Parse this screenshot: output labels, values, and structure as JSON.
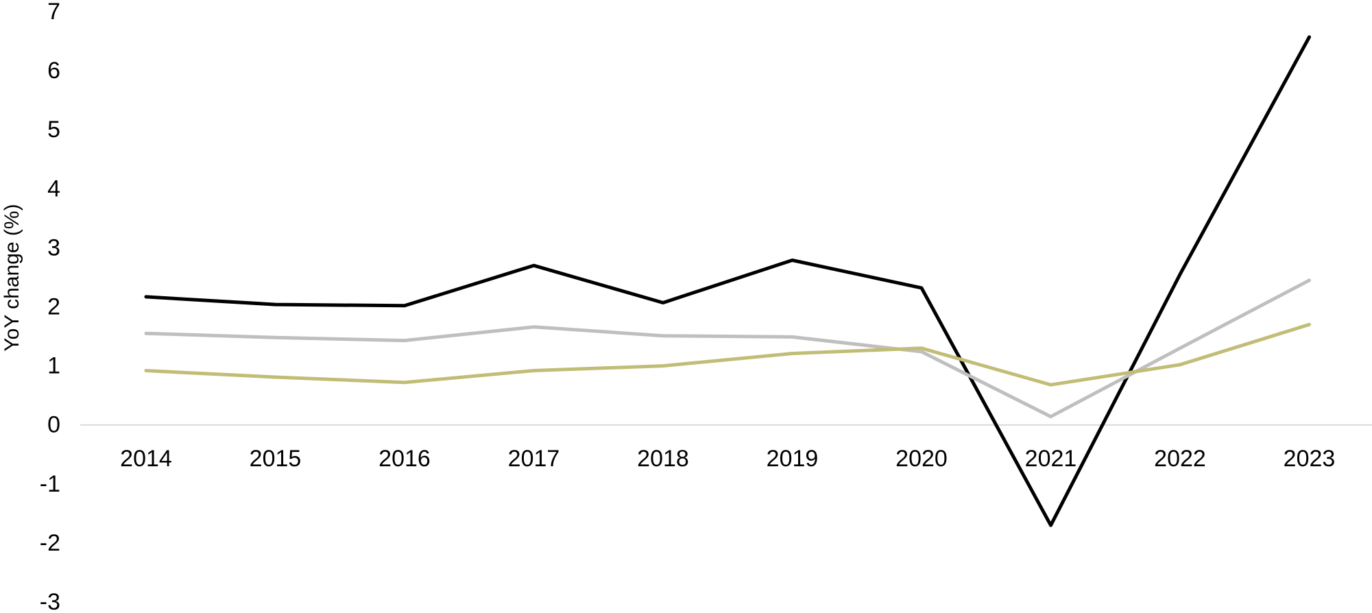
{
  "chart_data": {
    "type": "line",
    "title": "",
    "xlabel": "",
    "ylabel": "YoY change (%)",
    "categories": [
      "2014",
      "2015",
      "2016",
      "2017",
      "2018",
      "2019",
      "2020",
      "2021",
      "2022",
      "2023"
    ],
    "yticks": [
      "7",
      "6",
      "5",
      "4",
      "3",
      "2",
      "1",
      "0",
      "-1",
      "-2",
      "-3"
    ],
    "ylim": [
      -3,
      7
    ],
    "grid": false,
    "legend": "none",
    "series": [
      {
        "color": "#000000",
        "values": [
          2.17,
          2.04,
          2.02,
          2.7,
          2.07,
          2.79,
          2.32,
          -1.7,
          2.55,
          6.57
        ]
      },
      {
        "color": "#bfbfbf",
        "values": [
          1.55,
          1.48,
          1.43,
          1.66,
          1.51,
          1.49,
          1.24,
          0.14,
          1.3,
          2.45
        ]
      },
      {
        "color": "#c2bd76",
        "values": [
          0.92,
          0.81,
          0.72,
          0.92,
          1.0,
          1.21,
          1.3,
          0.68,
          1.02,
          1.7
        ]
      }
    ]
  }
}
